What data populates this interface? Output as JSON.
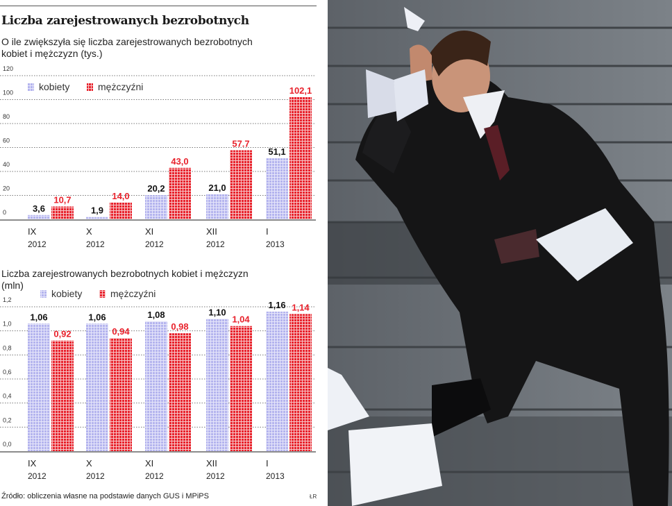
{
  "infographic": {
    "title": "Liczba zarejestrowanych bezrobotnych",
    "source": "Źródło: obliczenia własne na podstawie danych GUS i MPiPS",
    "credit": "ŁR"
  },
  "colors": {
    "kobiety": "#b4b4ee",
    "mezczyzni": "#e8222c",
    "label_kobiety": "#111111",
    "label_mezczyzni": "#e8222c"
  },
  "photo": {
    "description_icon": "businessman-on-stairs-photo"
  },
  "chart_data": [
    {
      "type": "bar",
      "title": "O ile zwiększyła się liczba zarejestrowanych bezrobotnych kobiet i mężczyzn (tys.)",
      "title_lines": [
        "O ile zwiększyła się liczba zarejestrowanych bezrobotnych",
        "kobiet i mężczyzn (tys.)"
      ],
      "categories": [
        [
          "IX",
          "2012"
        ],
        [
          "X",
          "2012"
        ],
        [
          "XI",
          "2012"
        ],
        [
          "XII",
          "2012"
        ],
        [
          "I",
          "2013"
        ]
      ],
      "series": [
        {
          "name": "kobiety",
          "values": [
            3.6,
            1.9,
            20.2,
            21.0,
            51.1
          ],
          "labels": [
            "3,6",
            "1,9",
            "20,2",
            "21,0",
            "51,1"
          ]
        },
        {
          "name": "mężczyźni",
          "values": [
            10.7,
            14.0,
            43.0,
            57.7,
            102.1
          ],
          "labels": [
            "10,7",
            "14,0",
            "43,0",
            "57.7",
            "102,1"
          ]
        }
      ],
      "yticks": [
        "0",
        "20",
        "40",
        "60",
        "80",
        "100",
        "120"
      ],
      "ylim": [
        0,
        120
      ],
      "grid": true,
      "legend": "top-left"
    },
    {
      "type": "bar",
      "title": "Liczba zarejestrowanych bezrobotnych kobiet i mężczyzn (mln)",
      "title_lines": [
        "Liczba zarejestrowanych bezrobotnych kobiet i mężczyzn",
        "(mln)"
      ],
      "categories": [
        [
          "IX",
          "2012"
        ],
        [
          "X",
          "2012"
        ],
        [
          "XI",
          "2012"
        ],
        [
          "XII",
          "2012"
        ],
        [
          "I",
          "2013"
        ]
      ],
      "series": [
        {
          "name": "kobiety",
          "values": [
            1.06,
            1.06,
            1.08,
            1.1,
            1.16
          ],
          "labels": [
            "1,06",
            "1,06",
            "1,08",
            "1,10",
            "1,16"
          ]
        },
        {
          "name": "mężczyźni",
          "values": [
            0.92,
            0.94,
            0.98,
            1.04,
            1.14
          ],
          "labels": [
            "0,92",
            "0,94",
            "0,98",
            "1,04",
            "1,14"
          ]
        }
      ],
      "yticks": [
        "0,0",
        "0,2",
        "0,4",
        "0,6",
        "0,8",
        "1,0",
        "1,2"
      ],
      "ylim": [
        0,
        1.2
      ],
      "grid": true,
      "legend": "top-left"
    }
  ]
}
